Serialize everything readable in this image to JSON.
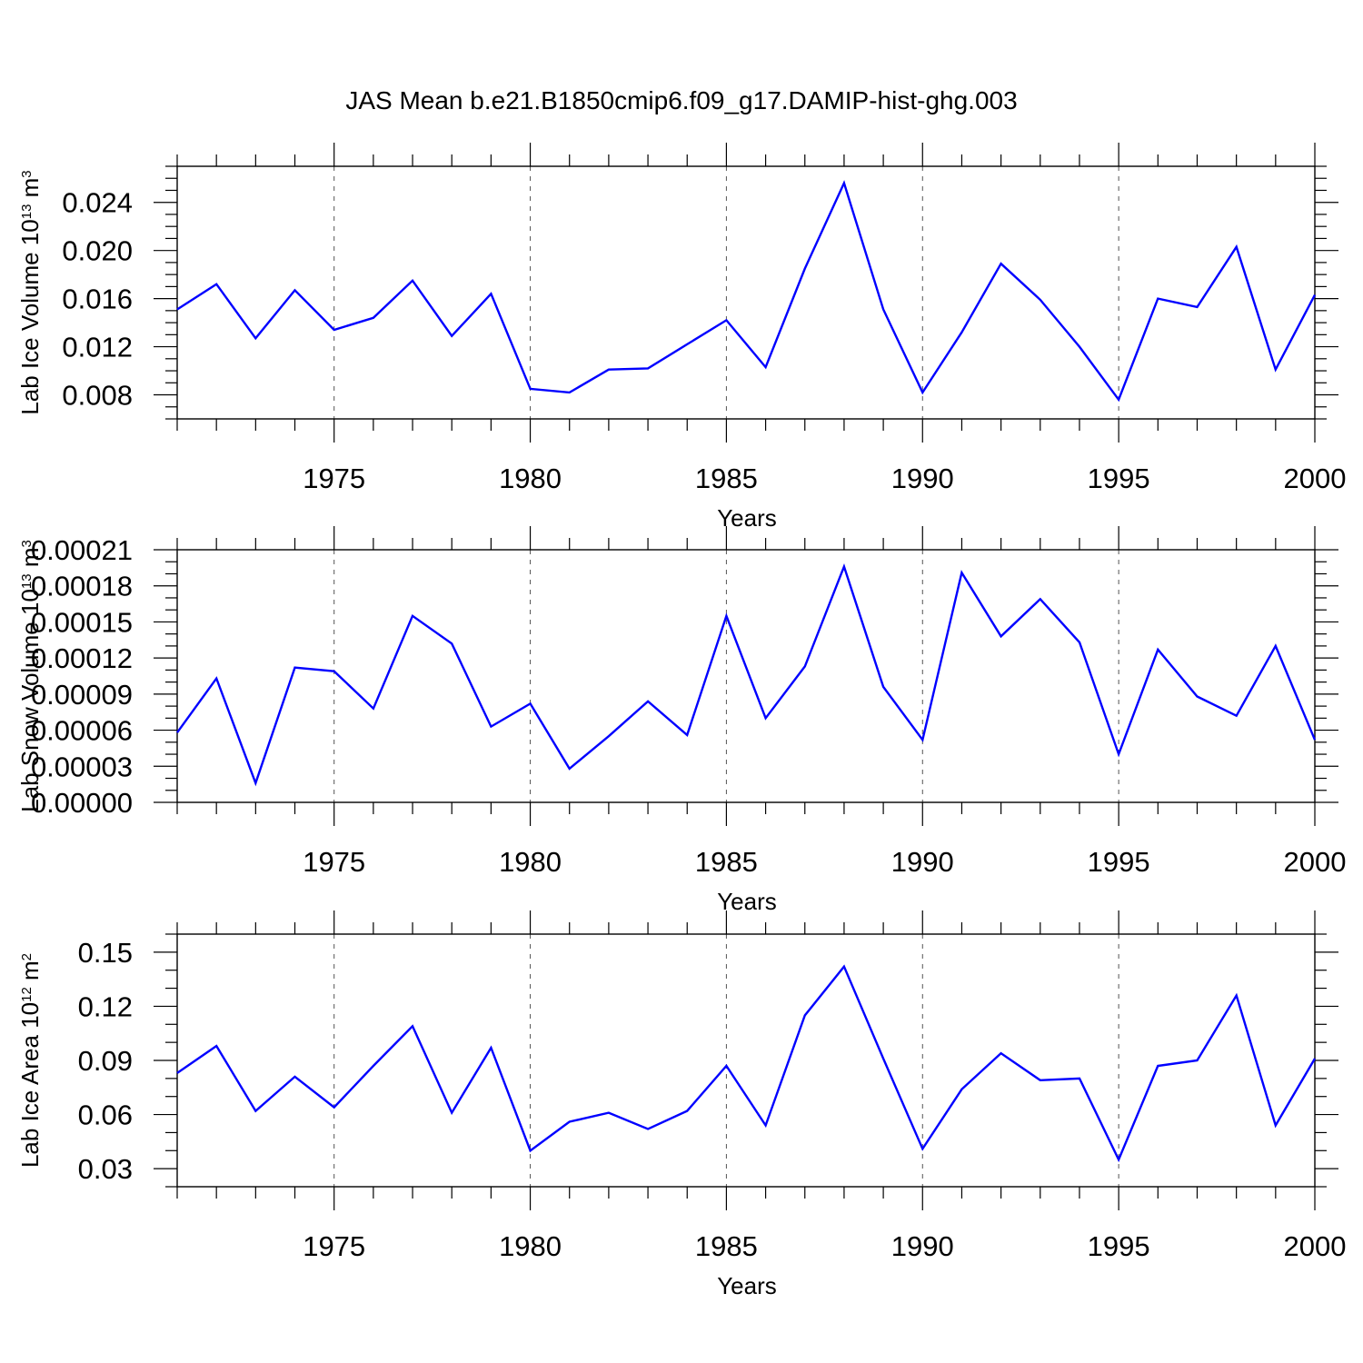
{
  "title": "JAS Mean b.e21.B1850cmip6.f09_g17.DAMIP-hist-ghg.003",
  "colors": {
    "series": "#0000ff",
    "axis": "#000000",
    "grid": "#555555"
  },
  "chart_data": [
    {
      "type": "line",
      "ylabel": "Lab Ice Volume 10",
      "ylabel_exp": "13",
      "ylabel_unit": " m",
      "ylabel_unit_exp": "3",
      "xlabel": "Years",
      "xlim": [
        1971,
        2000
      ],
      "ylim": [
        0.006,
        0.027
      ],
      "xticks": [
        1975,
        1980,
        1985,
        1990,
        1995,
        2000
      ],
      "yticks": [
        0.008,
        0.012,
        0.016,
        0.02,
        0.024
      ],
      "yticklabels": [
        "0.008",
        "0.012",
        "0.016",
        "0.020",
        "0.024"
      ],
      "yminor_step": 0.001,
      "series_name": "JAS mean",
      "x": [
        1971,
        1972,
        1973,
        1974,
        1975,
        1976,
        1977,
        1978,
        1979,
        1980,
        1981,
        1982,
        1983,
        1984,
        1985,
        1986,
        1987,
        1988,
        1989,
        1990,
        1991,
        1992,
        1993,
        1994,
        1995,
        1996,
        1997,
        1998,
        1999,
        2000
      ],
      "y": [
        0.0151,
        0.0172,
        0.0127,
        0.0167,
        0.0134,
        0.0144,
        0.0175,
        0.0129,
        0.0164,
        0.0085,
        0.0082,
        0.0101,
        0.0102,
        0.0122,
        0.0142,
        0.0103,
        0.0185,
        0.0256,
        0.0151,
        0.0082,
        0.0132,
        0.0189,
        0.0159,
        0.012,
        0.0076,
        0.016,
        0.0153,
        0.0203,
        0.0101,
        0.0163
      ]
    },
    {
      "type": "line",
      "ylabel": "Lab Snow Volume 10",
      "ylabel_exp": "13",
      "ylabel_unit": " m",
      "ylabel_unit_exp": "3",
      "xlabel": "Years",
      "xlim": [
        1971,
        2000
      ],
      "ylim": [
        0.0,
        0.00021
      ],
      "xticks": [
        1975,
        1980,
        1985,
        1990,
        1995,
        2000
      ],
      "yticks": [
        0.0,
        3e-05,
        6e-05,
        9e-05,
        0.00012,
        0.00015,
        0.00018,
        0.00021
      ],
      "yticklabels": [
        "0.00000",
        "0.00003",
        "0.00006",
        "0.00009",
        "0.00012",
        "0.00015",
        "0.00018",
        "0.00021"
      ],
      "yminor_step": 1e-05,
      "series_name": "JAS mean",
      "x": [
        1971,
        1972,
        1973,
        1974,
        1975,
        1976,
        1977,
        1978,
        1979,
        1980,
        1981,
        1982,
        1983,
        1984,
        1985,
        1986,
        1987,
        1988,
        1989,
        1990,
        1991,
        1992,
        1993,
        1994,
        1995,
        1996,
        1997,
        1998,
        1999,
        2000
      ],
      "y": [
        5.8e-05,
        0.000103,
        1.6e-05,
        0.000112,
        0.000109,
        7.8e-05,
        0.000155,
        0.000132,
        6.3e-05,
        8.2e-05,
        2.8e-05,
        5.5e-05,
        8.4e-05,
        5.6e-05,
        0.000155,
        7e-05,
        0.000113,
        0.000196,
        9.6e-05,
        5.2e-05,
        0.000191,
        0.000138,
        0.000169,
        0.000133,
        4e-05,
        0.000127,
        8.8e-05,
        7.2e-05,
        0.00013,
        5.2e-05
      ]
    },
    {
      "type": "line",
      "ylabel": "Lab Ice Area 10",
      "ylabel_exp": "12",
      "ylabel_unit": " m",
      "ylabel_unit_exp": "2",
      "xlabel": "Years",
      "xlim": [
        1971,
        2000
      ],
      "ylim": [
        0.02,
        0.16
      ],
      "xticks": [
        1975,
        1980,
        1985,
        1990,
        1995,
        2000
      ],
      "yticks": [
        0.03,
        0.06,
        0.09,
        0.12,
        0.15
      ],
      "yticklabels": [
        "0.03",
        "0.06",
        "0.09",
        "0.12",
        "0.15"
      ],
      "yminor_step": 0.01,
      "series_name": "JAS mean",
      "x": [
        1971,
        1972,
        1973,
        1974,
        1975,
        1976,
        1977,
        1978,
        1979,
        1980,
        1981,
        1982,
        1983,
        1984,
        1985,
        1986,
        1987,
        1988,
        1989,
        1990,
        1991,
        1992,
        1993,
        1994,
        1995,
        1996,
        1997,
        1998,
        1999,
        2000
      ],
      "y": [
        0.083,
        0.098,
        0.062,
        0.081,
        0.064,
        0.087,
        0.109,
        0.061,
        0.097,
        0.04,
        0.056,
        0.061,
        0.052,
        0.062,
        0.087,
        0.054,
        0.115,
        0.142,
        0.091,
        0.041,
        0.074,
        0.094,
        0.079,
        0.08,
        0.035,
        0.087,
        0.09,
        0.126,
        0.054,
        0.091
      ]
    }
  ]
}
